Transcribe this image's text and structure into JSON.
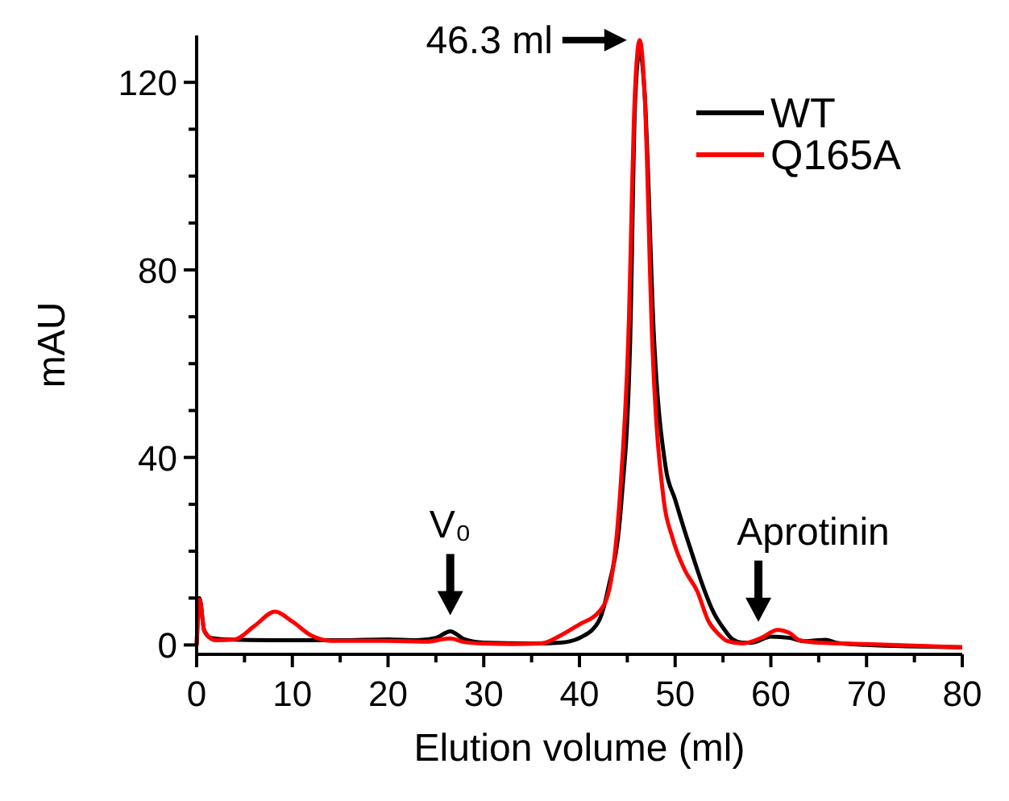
{
  "chart_data": {
    "type": "line",
    "xlabel": "Elution volume (ml)",
    "ylabel": "mAU",
    "xlim": [
      0,
      80
    ],
    "ylim": [
      -2,
      130
    ],
    "xticks": [
      0,
      {
        "value": 5,
        "label": null
      },
      10,
      {
        "value": 15,
        "label": null
      },
      20,
      {
        "value": 25,
        "label": null
      },
      30,
      {
        "value": 35,
        "label": null
      },
      40,
      {
        "value": 45,
        "label": null
      },
      50,
      {
        "value": 55,
        "label": null
      },
      60,
      {
        "value": 65,
        "label": null
      },
      70,
      {
        "value": 75,
        "label": null
      },
      80
    ],
    "yticks": [
      0,
      {
        "value": 10,
        "label": null
      },
      {
        "value": 20,
        "label": null
      },
      {
        "value": 30,
        "label": null
      },
      40,
      {
        "value": 50,
        "label": null
      },
      {
        "value": 60,
        "label": null
      },
      {
        "value": 70,
        "label": null
      },
      80,
      {
        "value": 90,
        "label": null
      },
      {
        "value": 100,
        "label": null
      },
      {
        "value": 110,
        "label": null
      },
      120
    ],
    "grid": false,
    "legend": "top right",
    "marker": "none",
    "line_style": "solid",
    "annotations": [
      {
        "text": "46.3 ml",
        "x": 46.3,
        "y": 129
      },
      {
        "text": "V₀",
        "x": 26.5,
        "y": 2.9
      },
      {
        "text": "Aprotinin",
        "x": 58.7,
        "y": 1.5
      }
    ],
    "series": [
      {
        "name": "WT",
        "color": "#000000",
        "x": [
          0,
          0.3,
          0.8,
          1.5,
          3,
          8,
          15,
          20,
          23,
          25,
          26.5,
          28,
          30,
          35,
          38,
          40,
          42,
          43,
          44.4,
          45.3,
          45.8,
          46.3,
          46.8,
          47.8,
          49,
          50,
          51.2,
          52,
          53,
          54,
          55.1,
          56,
          57,
          58,
          60,
          62,
          63.5,
          65.7,
          67,
          70,
          80
        ],
        "values": [
          0,
          10,
          3,
          1.5,
          1.2,
          1,
          1,
          1.2,
          1,
          1.5,
          2.9,
          1.2,
          0.5,
          0.3,
          0.5,
          1.5,
          5,
          12,
          31,
          65,
          115,
          127,
          118,
          65,
          38,
          31,
          23,
          18,
          12,
          7,
          3.4,
          1.2,
          0.5,
          0.5,
          1.8,
          1.5,
          0.8,
          1.1,
          0.4,
          0,
          -0.5
        ]
      },
      {
        "name": "Q165A",
        "color": "#ff0000",
        "x": [
          0,
          0.3,
          0.8,
          2,
          4,
          6,
          8.2,
          10,
          12,
          14,
          20,
          24,
          26.5,
          28,
          30,
          33,
          36,
          38,
          40,
          42,
          43,
          44.2,
          45.1,
          45.8,
          46.3,
          46.8,
          47.6,
          48.8,
          49.7,
          51,
          52.3,
          53.5,
          54.5,
          55.5,
          57,
          59,
          60.7,
          62,
          63,
          65,
          70,
          80
        ],
        "values": [
          0,
          9.7,
          3,
          1,
          1.2,
          4,
          7.1,
          5,
          2,
          0.9,
          0.9,
          0.7,
          1.4,
          0.6,
          0.3,
          0.2,
          0.3,
          2,
          4.4,
          7,
          10.9,
          31,
          65,
          118,
          129,
          118,
          65,
          31,
          23,
          16,
          11.5,
          5,
          2.4,
          0.8,
          0.3,
          1.5,
          3.2,
          2.5,
          1,
          0.5,
          0.2,
          -0.5
        ]
      }
    ]
  }
}
